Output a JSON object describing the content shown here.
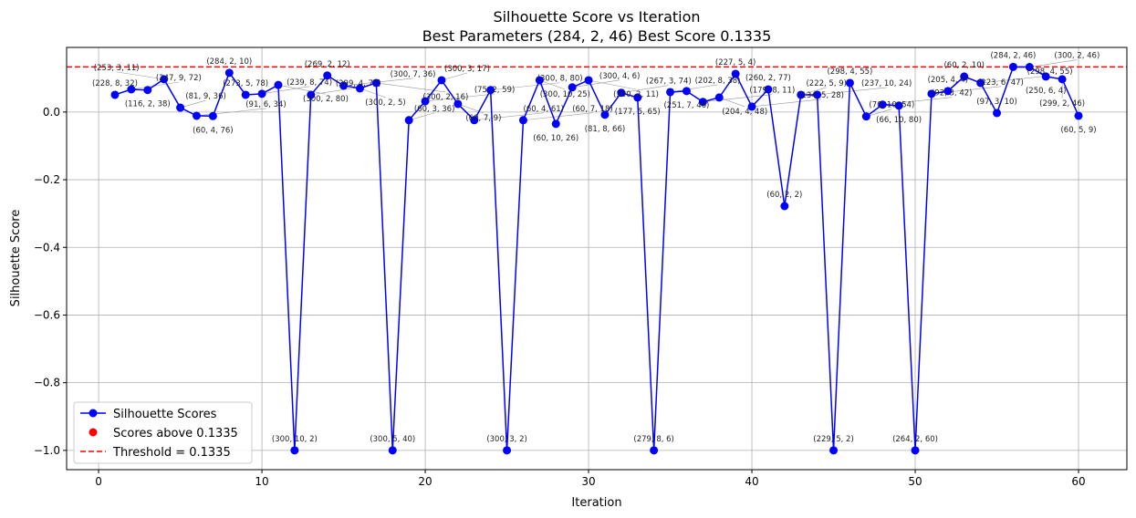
{
  "chart_data": {
    "type": "line",
    "title": "Silhouette Score vs Iteration",
    "subtitle": "Best Parameters (284, 2, 46)  Best Score 0.1335",
    "xlabel": "Iteration",
    "ylabel": "Silhouette Score",
    "xlim": [
      -1.96,
      62.96
    ],
    "ylim": [
      -1.057,
      0.191
    ],
    "xticks": [
      0,
      10,
      20,
      30,
      40,
      50,
      60
    ],
    "yticks": [
      -1.0,
      -0.8,
      -0.6,
      -0.4,
      -0.2,
      0.0
    ],
    "ytick_labels": [
      "−1.0",
      "−0.8",
      "−0.6",
      "−0.4",
      "−0.2",
      "0.0"
    ],
    "grid": true,
    "legend_position": "lower-left",
    "legend": [
      "Silhouette Scores",
      "Scores above 0.1335",
      "Threshold = 0.1335"
    ],
    "threshold": 0.1335,
    "colors": {
      "line": "#0000ff",
      "above": "#ff0000",
      "threshold": "#ff0000"
    },
    "x": [
      1,
      2,
      3,
      4,
      5,
      6,
      7,
      8,
      9,
      10,
      11,
      12,
      13,
      14,
      15,
      16,
      17,
      18,
      19,
      20,
      21,
      22,
      23,
      24,
      25,
      26,
      27,
      28,
      29,
      30,
      31,
      32,
      33,
      34,
      35,
      36,
      37,
      38,
      39,
      40,
      41,
      42,
      43,
      44,
      45,
      46,
      47,
      48,
      49,
      50,
      51,
      52,
      53,
      54,
      55,
      56,
      57,
      58,
      59,
      60
    ],
    "values": [
      0.051,
      0.067,
      0.065,
      0.097,
      0.013,
      -0.011,
      -0.012,
      0.116,
      0.051,
      0.054,
      0.08,
      -1.0,
      0.051,
      0.108,
      0.078,
      0.07,
      0.086,
      -1.0,
      -0.024,
      0.032,
      0.094,
      0.024,
      -0.024,
      0.065,
      -1.0,
      -0.024,
      0.094,
      -0.035,
      0.073,
      0.094,
      -0.008,
      0.057,
      0.043,
      -1.0,
      0.059,
      0.062,
      0.03,
      0.043,
      0.113,
      0.016,
      0.067,
      -0.278,
      0.051,
      0.051,
      -1.0,
      0.086,
      -0.013,
      0.022,
      0.019,
      -1.0,
      0.054,
      0.062,
      0.105,
      0.086,
      -0.003,
      0.1335,
      0.133,
      0.105,
      0.097,
      -0.011
    ],
    "annotations": [
      "(228, 8, 32)",
      "(247, 9, 72)",
      "(116, 2, 38)",
      "(253, 3, 11)",
      "(81, 9, 36)",
      "(91, 6, 34)",
      "(60, 4, 76)",
      "(284, 2, 10)",
      "(273, 5, 78)",
      "(239, 8, 74)",
      "(300, 2, 80)",
      "(300, 10, 2)",
      "(299, 4, 77)",
      "(269, 2, 12)",
      "(300, 7, 36)",
      "(300, 2, 5)",
      "(300, 2, 16)",
      "(300, 5, 40)",
      "(60, 3, 36)",
      "(75, 2, 59)",
      "(300, 3, 17)",
      "(60, 7, 9)",
      "(60, 4, 61)",
      "(300, 8, 80)",
      "(300, 3, 2)",
      "(60, 7, 18)",
      "(300, 10, 25)",
      "(60, 10, 26)",
      "(300, 4, 6)",
      "(300, 2, 11)",
      "(81, 8, 66)",
      "(267, 3, 74)",
      "(177, 5, 65)",
      "(279, 8, 6)",
      "(202, 8, 38)",
      "(251, 7, 46)",
      "(179, 8, 11)",
      "(204, 4, 48)",
      "(227, 5, 4)",
      "(134, 5, 28)",
      "(260, 2, 77)",
      "(60, 2, 2)",
      "(222, 5, 9)",
      "(237, 10, 24)",
      "(229, 5, 2)",
      "(298, 4, 55)",
      "(70, 10, 54)",
      "(92, 3, 42)",
      "(66, 10, 80)",
      "(264, 2, 60)",
      "(223, 6, 47)",
      "(205, 4, 4)",
      "(60, 2, 10)",
      "(298, 4, 55)",
      "(97, 3, 10)",
      "(284, 2, 46)",
      "(300, 2, 46)",
      "(250, 6, 4)",
      "(299, 2, 46)",
      "(60, 5, 9)"
    ]
  }
}
